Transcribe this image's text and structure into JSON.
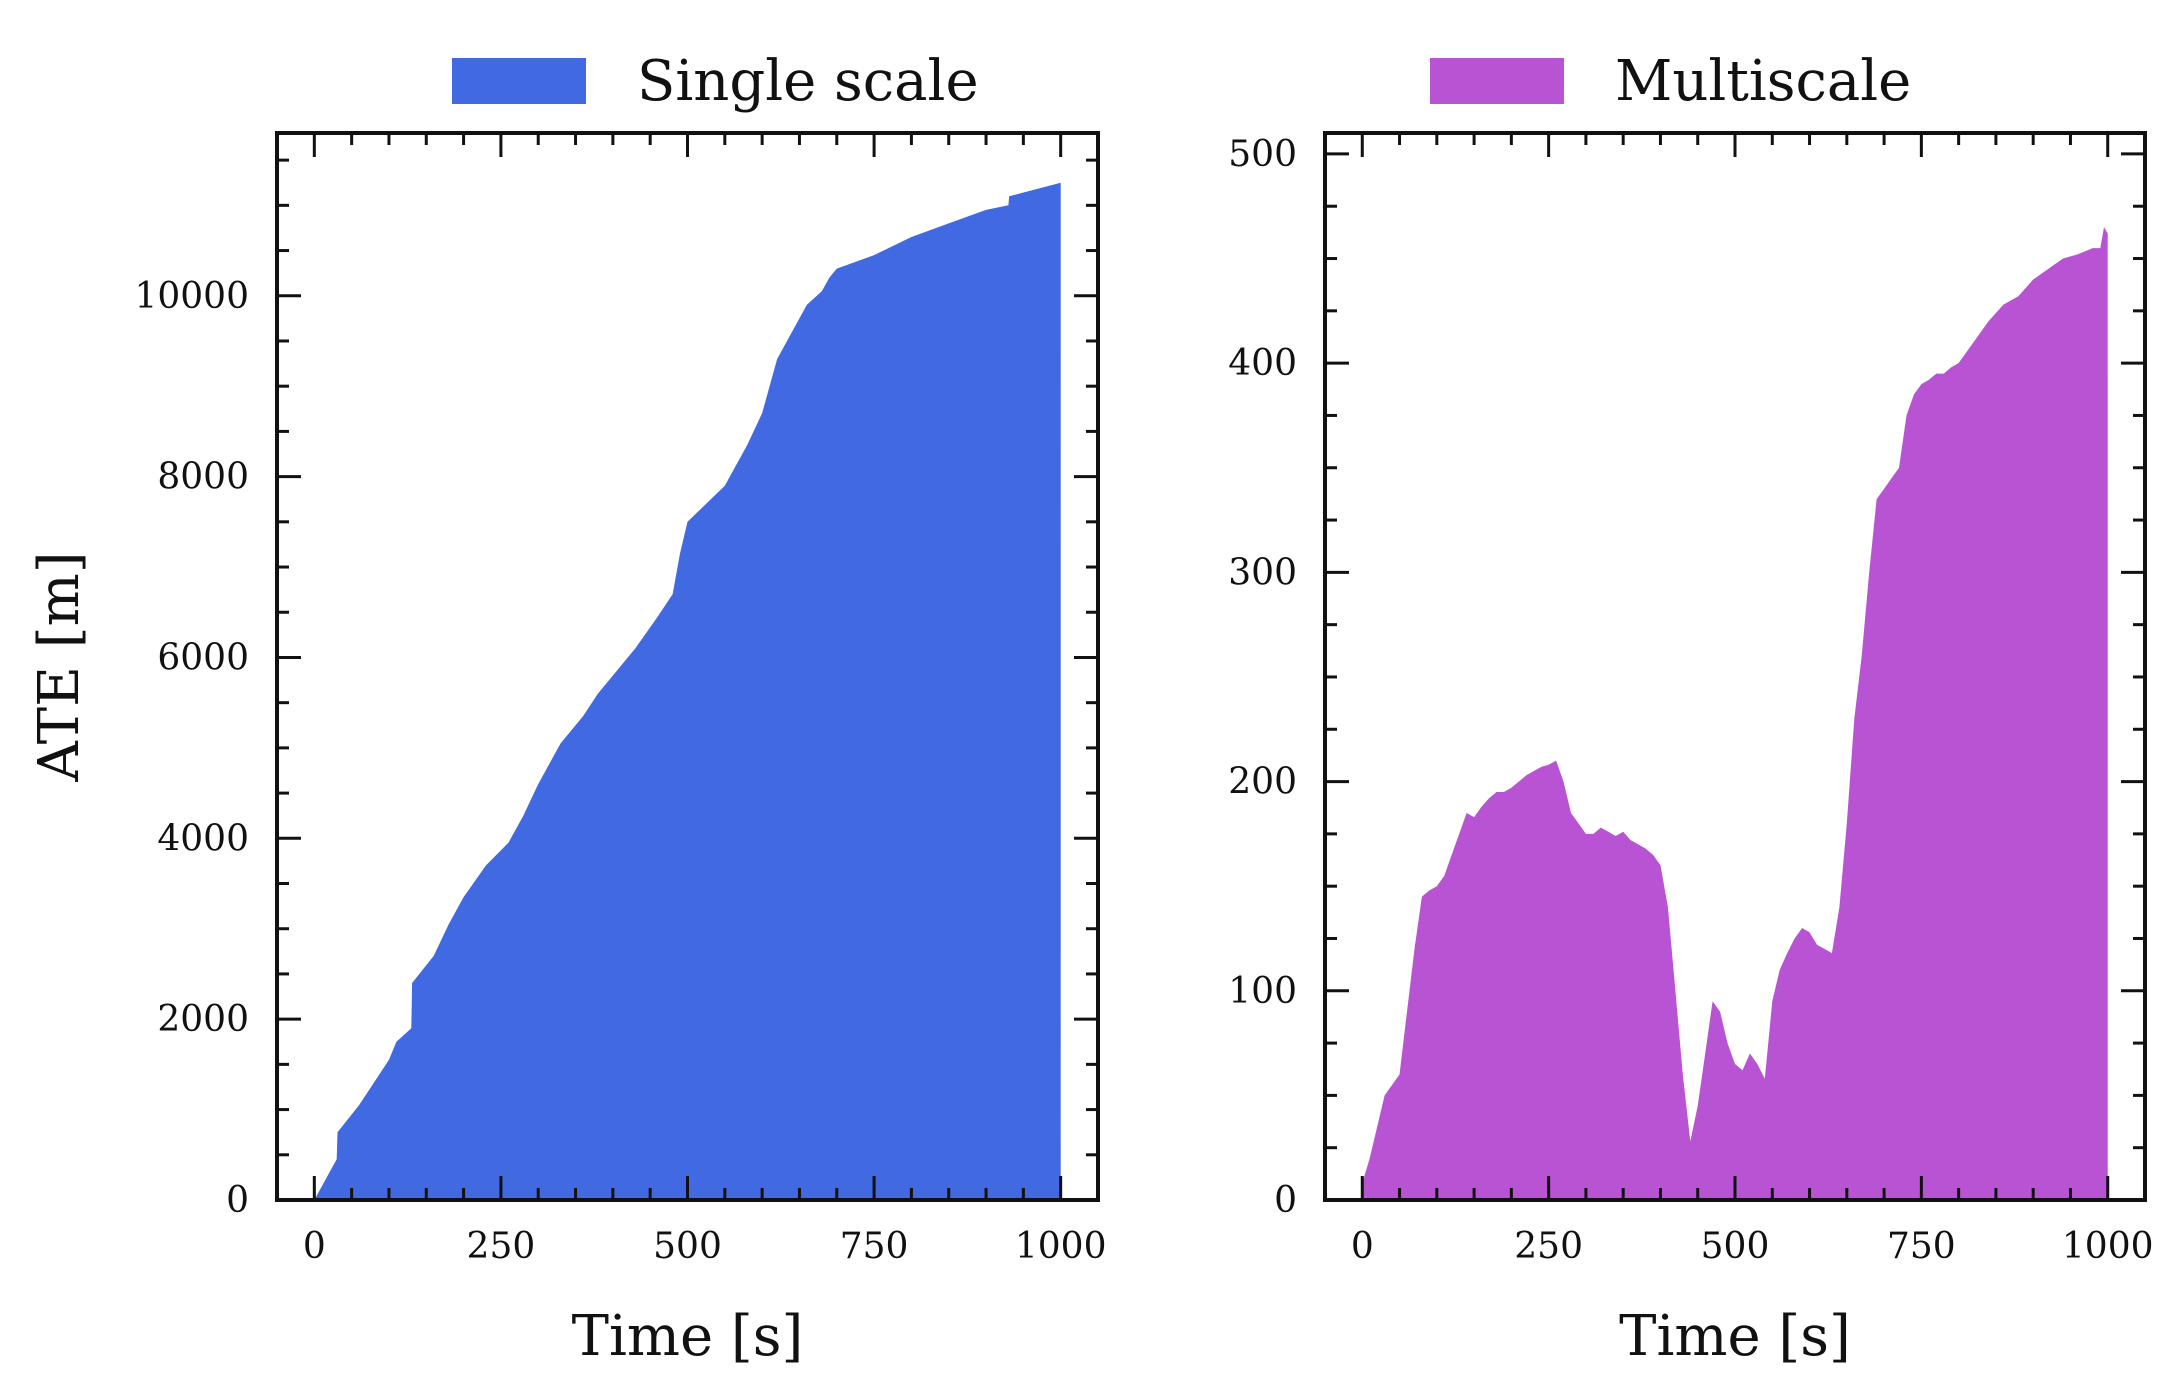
{
  "chart_data": [
    {
      "type": "area",
      "legend": "Single scale",
      "xlabel": "Time [s]",
      "ylabel": "ATE [m]",
      "xlim": [
        -50,
        1050
      ],
      "ylim": [
        0,
        11800
      ],
      "xticks": [
        0,
        250,
        500,
        750,
        1000
      ],
      "yticks": [
        0,
        2000,
        4000,
        6000,
        8000,
        10000
      ],
      "xtick_labels": [
        "0",
        "250",
        "500",
        "750",
        "1000"
      ],
      "ytick_labels": [
        "0",
        "2000",
        "4000",
        "6000",
        "8000",
        "10000"
      ],
      "legend_position": "top",
      "grid": false,
      "color": "#4169e1",
      "x": [
        0,
        10,
        20,
        30,
        31,
        60,
        100,
        110,
        130,
        131,
        160,
        180,
        200,
        230,
        260,
        280,
        300,
        330,
        360,
        380,
        400,
        430,
        460,
        480,
        490,
        500,
        550,
        580,
        600,
        620,
        640,
        660,
        680,
        690,
        700,
        750,
        800,
        850,
        900,
        930,
        931,
        1000
      ],
      "y": [
        0,
        150,
        300,
        450,
        750,
        1050,
        1550,
        1750,
        1900,
        2400,
        2700,
        3050,
        3350,
        3700,
        3950,
        4250,
        4600,
        5050,
        5350,
        5600,
        5800,
        6100,
        6450,
        6700,
        7150,
        7500,
        7900,
        8350,
        8700,
        9300,
        9600,
        9900,
        10050,
        10200,
        10300,
        10450,
        10650,
        10800,
        10950,
        11000,
        11100,
        11250
      ]
    },
    {
      "type": "area",
      "legend": "Multiscale",
      "xlabel": "Time [s]",
      "ylabel": "",
      "xlim": [
        -50,
        1050
      ],
      "ylim": [
        0,
        510
      ],
      "xticks": [
        0,
        250,
        500,
        750,
        1000
      ],
      "yticks": [
        0,
        100,
        200,
        300,
        400,
        500
      ],
      "xtick_labels": [
        "0",
        "250",
        "500",
        "750",
        "1000"
      ],
      "ytick_labels": [
        "0",
        "100",
        "200",
        "300",
        "400",
        "500"
      ],
      "legend_position": "top",
      "grid": false,
      "color": "#b854d4",
      "x": [
        0,
        10,
        20,
        30,
        40,
        50,
        60,
        70,
        80,
        90,
        100,
        110,
        120,
        130,
        140,
        150,
        160,
        170,
        180,
        190,
        200,
        210,
        220,
        230,
        240,
        250,
        260,
        270,
        280,
        290,
        300,
        310,
        320,
        330,
        340,
        350,
        360,
        370,
        380,
        390,
        400,
        410,
        420,
        430,
        440,
        450,
        460,
        470,
        480,
        490,
        500,
        510,
        520,
        530,
        540,
        550,
        560,
        570,
        580,
        590,
        600,
        610,
        620,
        630,
        640,
        650,
        660,
        670,
        680,
        690,
        700,
        710,
        720,
        730,
        740,
        750,
        760,
        770,
        780,
        790,
        800,
        820,
        840,
        860,
        880,
        900,
        920,
        940,
        960,
        980,
        990,
        995,
        1000
      ],
      "y": [
        8,
        20,
        35,
        50,
        55,
        60,
        90,
        120,
        145,
        148,
        150,
        155,
        165,
        175,
        185,
        183,
        188,
        192,
        195,
        195,
        197,
        200,
        203,
        205,
        207,
        208,
        210,
        200,
        185,
        180,
        175,
        175,
        178,
        176,
        174,
        176,
        172,
        170,
        168,
        165,
        160,
        140,
        100,
        60,
        28,
        45,
        70,
        95,
        90,
        75,
        65,
        62,
        70,
        65,
        58,
        95,
        110,
        118,
        125,
        130,
        128,
        122,
        120,
        118,
        140,
        180,
        230,
        260,
        300,
        335,
        340,
        345,
        350,
        375,
        385,
        390,
        392,
        395,
        395,
        398,
        400,
        410,
        420,
        428,
        432,
        440,
        445,
        450,
        452,
        455,
        455,
        465,
        462
      ]
    }
  ]
}
